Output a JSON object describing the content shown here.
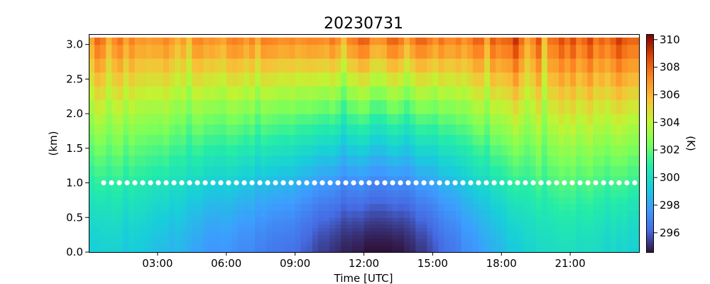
{
  "chart_data": {
    "type": "heatmap",
    "title": "20230731",
    "xlabel": "Time [UTC]",
    "ylabel": "(km)",
    "colorbar_label": "(K)",
    "colormap": "turbo",
    "x_unit": "hours UTC",
    "xlim": [
      0.0,
      23.75
    ],
    "ylim": [
      0.0,
      3.1
    ],
    "clim": [
      294.6,
      310.4
    ],
    "x_ticks": [
      {
        "value": 3,
        "label": "03:00"
      },
      {
        "value": 6,
        "label": "06:00"
      },
      {
        "value": 9,
        "label": "09:00"
      },
      {
        "value": 12,
        "label": "12:00"
      },
      {
        "value": 15,
        "label": "15:00"
      },
      {
        "value": 18,
        "label": "18:00"
      },
      {
        "value": 21,
        "label": "21:00"
      }
    ],
    "y_ticks": [
      {
        "value": 0.0,
        "label": "0.0"
      },
      {
        "value": 0.5,
        "label": "0.5"
      },
      {
        "value": 1.0,
        "label": "1.0"
      },
      {
        "value": 1.5,
        "label": "1.5"
      },
      {
        "value": 2.0,
        "label": "2.0"
      },
      {
        "value": 2.5,
        "label": "2.5"
      },
      {
        "value": 3.0,
        "label": "3.0"
      }
    ],
    "colorbar_ticks": [
      {
        "value": 296,
        "label": "296"
      },
      {
        "value": 298,
        "label": "298"
      },
      {
        "value": 300,
        "label": "300"
      },
      {
        "value": 302,
        "label": "302"
      },
      {
        "value": 304,
        "label": "304"
      },
      {
        "value": 306,
        "label": "306"
      },
      {
        "value": 308,
        "label": "308"
      },
      {
        "value": 310,
        "label": "310"
      }
    ],
    "heights_km": [
      0.0,
      0.05,
      0.1,
      0.15,
      0.2,
      0.25,
      0.3,
      0.35,
      0.4,
      0.45,
      0.5,
      0.6,
      0.7,
      0.8,
      0.9,
      1.0,
      1.1,
      1.25,
      1.4,
      1.55,
      1.7,
      1.85,
      2.0,
      2.2,
      2.4,
      2.6,
      2.8,
      3.0,
      3.1
    ],
    "profile_times_hours": [
      0.0,
      0.25,
      0.5,
      0.75,
      1.0,
      1.25,
      1.5,
      1.75,
      2.0,
      2.25,
      2.5,
      2.75,
      3.0,
      3.25,
      3.5,
      3.75,
      4.0,
      4.25,
      4.5,
      4.75,
      5.0,
      5.25,
      5.5,
      5.75,
      6.0,
      6.25,
      6.5,
      6.75,
      7.0,
      7.25,
      7.5,
      7.75,
      8.0,
      8.25,
      8.5,
      8.75,
      9.0,
      9.25,
      9.5,
      9.75,
      10.0,
      10.25,
      10.5,
      10.75,
      11.0,
      11.25,
      11.5,
      11.75,
      12.0,
      12.25,
      12.5,
      12.75,
      13.0,
      13.25,
      13.5,
      13.75,
      14.0,
      14.25,
      14.5,
      14.75,
      15.0,
      15.25,
      15.5,
      15.75,
      16.0,
      16.25,
      16.5,
      16.75,
      17.0,
      17.25,
      17.5,
      17.75,
      18.0,
      18.25,
      18.5,
      18.75,
      19.0,
      19.25,
      19.5,
      19.75,
      20.0,
      20.25,
      20.5,
      20.75,
      21.0,
      21.25,
      21.5,
      21.75,
      22.0,
      22.25,
      22.5,
      22.75,
      23.0,
      23.25,
      23.5,
      23.75
    ],
    "surface_temperature_K": [
      299.4,
      299.4,
      299.5,
      299.6,
      299.6,
      299.5,
      299.1,
      299.4,
      299.3,
      299.2,
      299.1,
      298.9,
      298.8,
      298.8,
      298.5,
      298.7,
      298.5,
      298.3,
      298.0,
      298.0,
      297.7,
      297.6,
      297.6,
      297.7,
      297.6,
      297.4,
      297.2,
      297.2,
      297.2,
      296.9,
      296.9,
      296.7,
      296.6,
      296.6,
      296.5,
      296.5,
      296.3,
      296.0,
      295.9,
      295.6,
      295.4,
      295.4,
      295.2,
      295.1,
      294.9,
      294.9,
      294.8,
      294.8,
      294.6,
      294.6,
      294.6,
      294.6,
      294.6,
      294.7,
      294.7,
      294.9,
      295.0,
      295.3,
      295.3,
      295.6,
      295.9,
      296.2,
      296.5,
      296.6,
      296.8,
      297.3,
      297.4,
      297.6,
      297.9,
      298.2,
      298.4,
      298.6,
      298.8,
      299.2,
      299.2,
      299.4,
      299.7,
      299.7,
      299.9,
      300.0,
      300.0,
      300.1,
      300.2,
      300.2,
      300.2,
      300.0,
      300.1,
      300.1,
      300.0,
      299.9,
      299.6,
      299.9,
      299.6,
      299.8,
      299.5,
      299.5
    ],
    "top_temperature_K": [
      306.6,
      308.2,
      307.7,
      306.2,
      307.3,
      307.9,
      306.6,
      307.6,
      306.9,
      307.0,
      306.8,
      307.0,
      307.0,
      307.5,
      306.9,
      306.2,
      306.9,
      305.7,
      307.4,
      307.5,
      307.0,
      307.2,
      306.9,
      306.6,
      307.5,
      307.7,
      307.5,
      306.9,
      307.6,
      306.4,
      307.7,
      307.6,
      307.5,
      307.2,
      307.3,
      307.5,
      307.1,
      307.3,
      307.5,
      307.5,
      307.4,
      307.2,
      307.9,
      307.3,
      306.0,
      307.6,
      307.8,
      308.5,
      308.4,
      307.2,
      307.1,
      307.3,
      308.3,
      308.4,
      307.8,
      306.6,
      307.6,
      308.3,
      308.3,
      307.8,
      307.2,
      308.0,
      307.4,
      307.4,
      307.8,
      307.1,
      307.6,
      308.3,
      308.2,
      306.5,
      308.5,
      307.9,
      308.2,
      308.3,
      309.5,
      308.0,
      306.5,
      307.4,
      308.7,
      305.7,
      307.9,
      308.0,
      308.8,
      308.0,
      308.9,
      307.7,
      308.2,
      309.1,
      307.7,
      308.3,
      307.8,
      308.4,
      309.3,
      308.5,
      308.2,
      308.2
    ]
  }
}
